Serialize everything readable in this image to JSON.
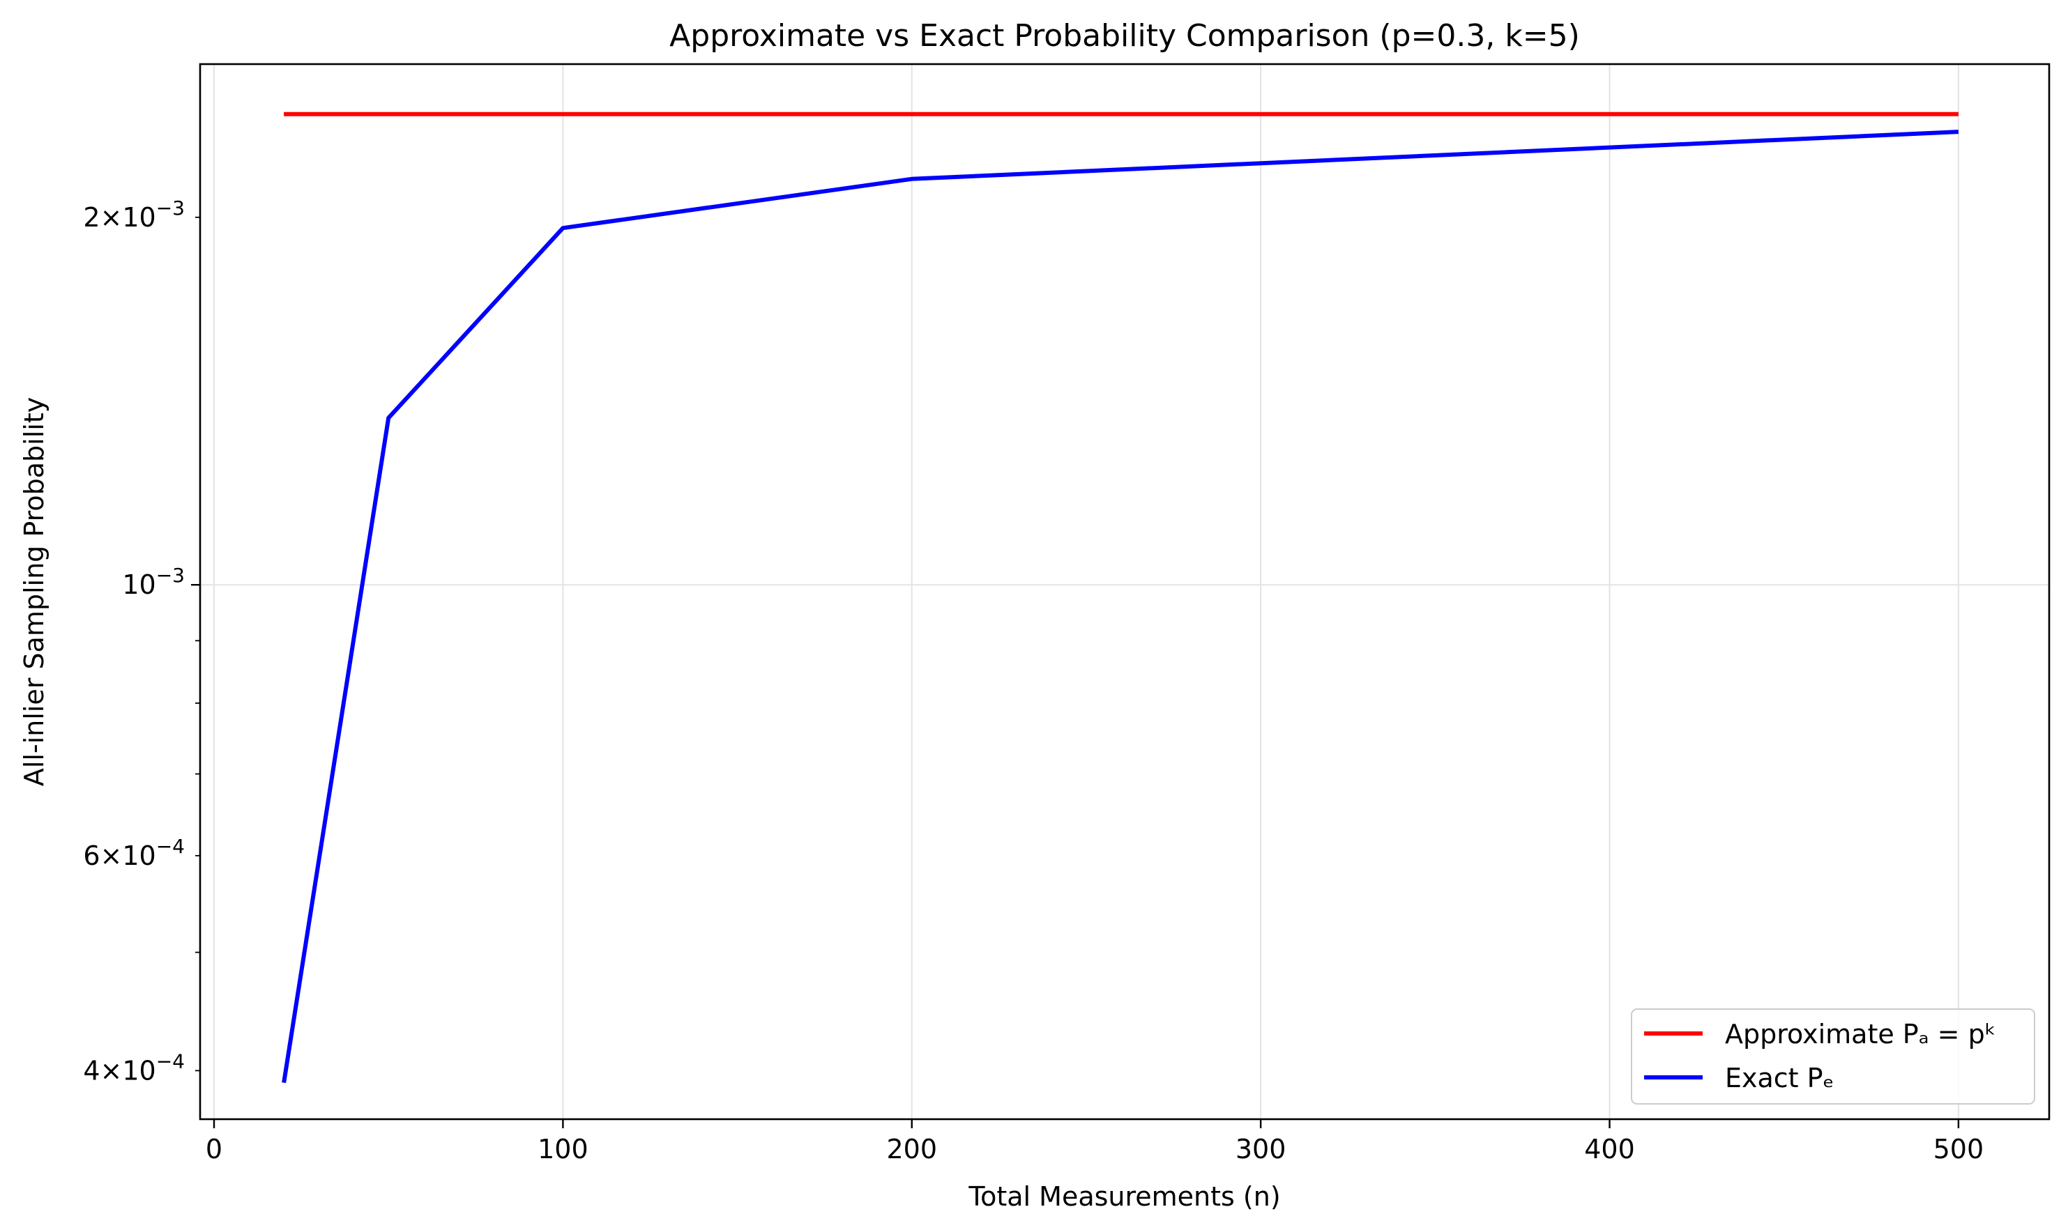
{
  "chart_data": {
    "type": "line",
    "title": "Approximate vs Exact Probability Comparison (p=0.3, k=5)",
    "xlabel": "Total Measurements (n)",
    "ylabel": "All-inlier Sampling Probability",
    "xlim": [
      -4,
      526
    ],
    "ylim": [
      0.000365,
      0.00267
    ],
    "yscale": "log",
    "grid": true,
    "legend_position": "lower-right",
    "x_ticks": [
      {
        "value": 0,
        "label": "0"
      },
      {
        "value": 100,
        "label": "100"
      },
      {
        "value": 200,
        "label": "200"
      },
      {
        "value": 300,
        "label": "300"
      },
      {
        "value": 400,
        "label": "400"
      },
      {
        "value": 500,
        "label": "500"
      }
    ],
    "y_major_ticks": [
      {
        "value": 0.001,
        "mantissa": "",
        "exponent": "−3"
      }
    ],
    "y_minor_ticks": [
      {
        "value": 0.0004,
        "mantissa": "4",
        "exponent": "−4"
      },
      {
        "value": 0.0005,
        "mantissa": "",
        "exponent": ""
      },
      {
        "value": 0.0006,
        "mantissa": "6",
        "exponent": "−4"
      },
      {
        "value": 0.0007,
        "mantissa": "",
        "exponent": ""
      },
      {
        "value": 0.0008,
        "mantissa": "",
        "exponent": ""
      },
      {
        "value": 0.0009,
        "mantissa": "",
        "exponent": ""
      },
      {
        "value": 0.002,
        "mantissa": "2",
        "exponent": "−3"
      }
    ],
    "series": [
      {
        "name": "Approximate Pₐ = pᵏ",
        "color": "#ff0000",
        "x": [
          20,
          50,
          100,
          200,
          500
        ],
        "y": [
          0.00243,
          0.00243,
          0.00243,
          0.00243,
          0.00243
        ]
      },
      {
        "name": "Exact Pₑ",
        "color": "#0000ff",
        "x": [
          20,
          50,
          100,
          200,
          500
        ],
        "y": [
          0.000391,
          0.00137,
          0.00196,
          0.00215,
          0.00235
        ]
      }
    ]
  }
}
